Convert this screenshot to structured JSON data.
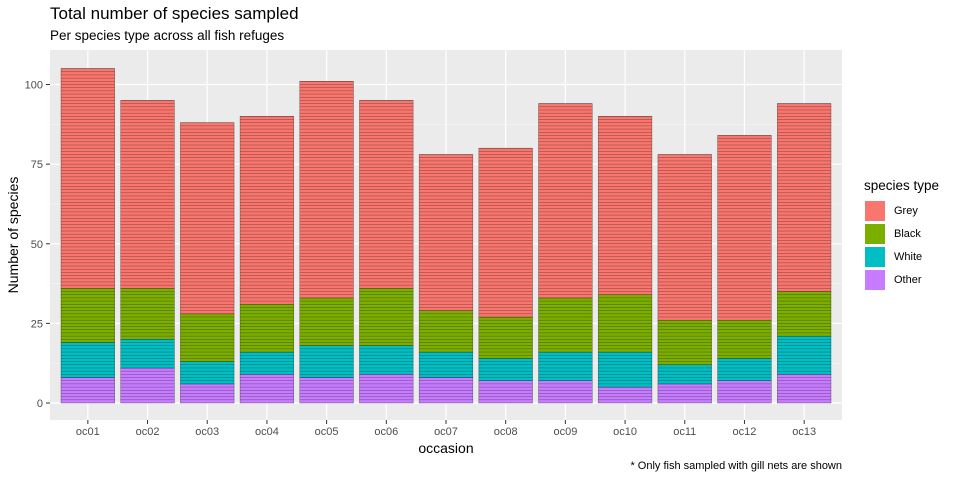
{
  "chart_data": {
    "type": "bar",
    "stacked": true,
    "title": "Total number of species sampled",
    "subtitle": "Per species type across all fish refuges",
    "caption": "* Only fish sampled with gill nets are shown",
    "xlabel": "occasion",
    "ylabel": "Number of species",
    "ylim": [
      0,
      110
    ],
    "yticks": [
      0,
      25,
      50,
      75,
      100
    ],
    "grid": true,
    "legend_title": "species type",
    "legend_position": "right",
    "categories": [
      "oc01",
      "oc02",
      "oc03",
      "oc04",
      "oc05",
      "oc06",
      "oc07",
      "oc08",
      "oc09",
      "oc10",
      "oc11",
      "oc12",
      "oc13"
    ],
    "series": [
      {
        "name": "Other",
        "color": "#C77CFF",
        "values": [
          8,
          11,
          6,
          9,
          8,
          9,
          8,
          7,
          7,
          5,
          6,
          7,
          9
        ]
      },
      {
        "name": "White",
        "color": "#00BFC4",
        "values": [
          11,
          9,
          7,
          7,
          10,
          9,
          8,
          7,
          9,
          11,
          6,
          7,
          12
        ]
      },
      {
        "name": "Black",
        "color": "#7CAE00",
        "values": [
          17,
          16,
          15,
          15,
          15,
          18,
          13,
          13,
          17,
          18,
          14,
          12,
          14
        ]
      },
      {
        "name": "Grey",
        "color": "#F8766D",
        "values": [
          69,
          59,
          60,
          59,
          68,
          59,
          49,
          53,
          61,
          56,
          52,
          58,
          59
        ]
      }
    ],
    "legend_order": [
      "Grey",
      "Black",
      "White",
      "Other"
    ]
  }
}
